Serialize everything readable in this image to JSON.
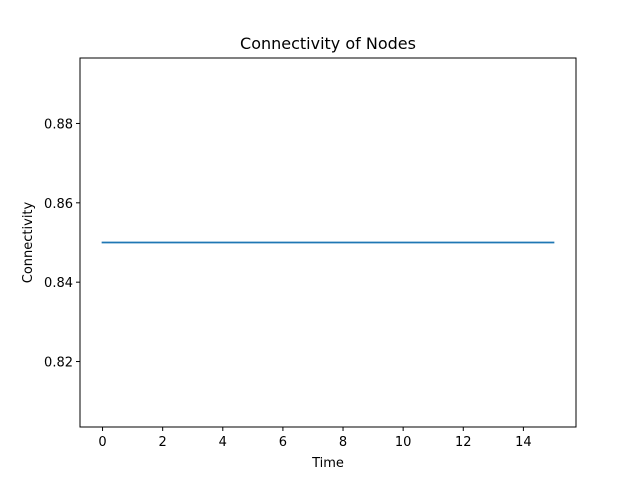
{
  "chart_data": {
    "type": "line",
    "title": "Connectivity of Nodes",
    "xlabel": "Time",
    "ylabel": "Connectivity",
    "xlim": [
      -0.75,
      15.75
    ],
    "ylim": [
      0.8035,
      0.8965
    ],
    "xticks": [
      0,
      2,
      4,
      6,
      8,
      10,
      12,
      14
    ],
    "xtick_labels": [
      "0",
      "2",
      "4",
      "6",
      "8",
      "10",
      "12",
      "14"
    ],
    "yticks": [
      0.82,
      0.84,
      0.86,
      0.88
    ],
    "ytick_labels": [
      "0.82",
      "0.84",
      "0.86",
      "0.88"
    ],
    "grid": false,
    "series": [
      {
        "color": "#1f77b4",
        "x": [
          0,
          1,
          2,
          3,
          4,
          5,
          6,
          7,
          8,
          9,
          10,
          11,
          12,
          13,
          14,
          15
        ],
        "y": [
          0.85,
          0.85,
          0.85,
          0.85,
          0.85,
          0.85,
          0.85,
          0.85,
          0.85,
          0.85,
          0.85,
          0.85,
          0.85,
          0.85,
          0.85,
          0.85
        ]
      }
    ]
  }
}
